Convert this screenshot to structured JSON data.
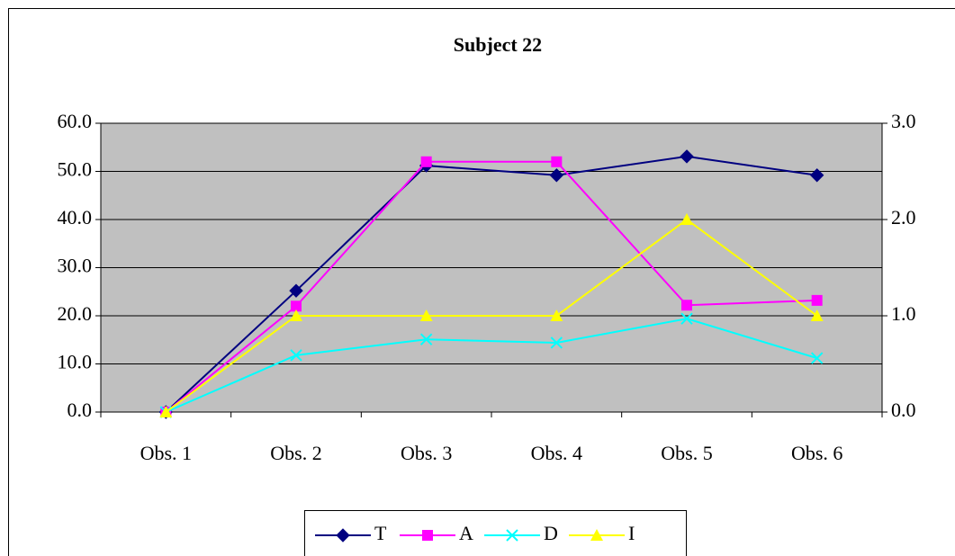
{
  "chart_data": {
    "type": "line",
    "title": "Subject 22",
    "categories": [
      "Obs. 1",
      "Obs. 2",
      "Obs. 3",
      "Obs. 4",
      "Obs. 5",
      "Obs. 6"
    ],
    "series": [
      {
        "name": "T",
        "color": "#000080",
        "marker": "diamond",
        "values": [
          0,
          25.2,
          51.2,
          49.2,
          53.1,
          49.2
        ]
      },
      {
        "name": "A",
        "color": "#ff00ff",
        "marker": "square",
        "values": [
          0,
          22,
          52,
          52,
          22.2,
          23.2
        ]
      },
      {
        "name": "D",
        "color": "#00ffff",
        "marker": "x",
        "values": [
          0,
          11.8,
          15.1,
          14.4,
          19.4,
          11.2
        ]
      },
      {
        "name": "I",
        "color": "#ffff00",
        "marker": "triangle",
        "axis": "y2",
        "values": [
          0,
          1,
          1,
          1,
          2,
          1
        ]
      }
    ],
    "ylim": [
      0,
      60
    ],
    "yticks": [
      {
        "value": 0,
        "label": "0.0"
      },
      {
        "value": 10,
        "label": "10.0"
      },
      {
        "value": 20,
        "label": "20.0"
      },
      {
        "value": 30,
        "label": "30.0"
      },
      {
        "value": 40,
        "label": "40.0"
      },
      {
        "value": 50,
        "label": "50.0"
      },
      {
        "value": 60,
        "label": "60.0"
      }
    ],
    "y2lim": [
      0,
      3
    ],
    "y2ticks": [
      {
        "value": 0,
        "label": "0.0"
      },
      {
        "value": 1,
        "label": "1.0"
      },
      {
        "value": 2,
        "label": "2.0"
      },
      {
        "value": 3,
        "label": "3.0"
      }
    ],
    "grid": true,
    "legend": "bottom"
  }
}
